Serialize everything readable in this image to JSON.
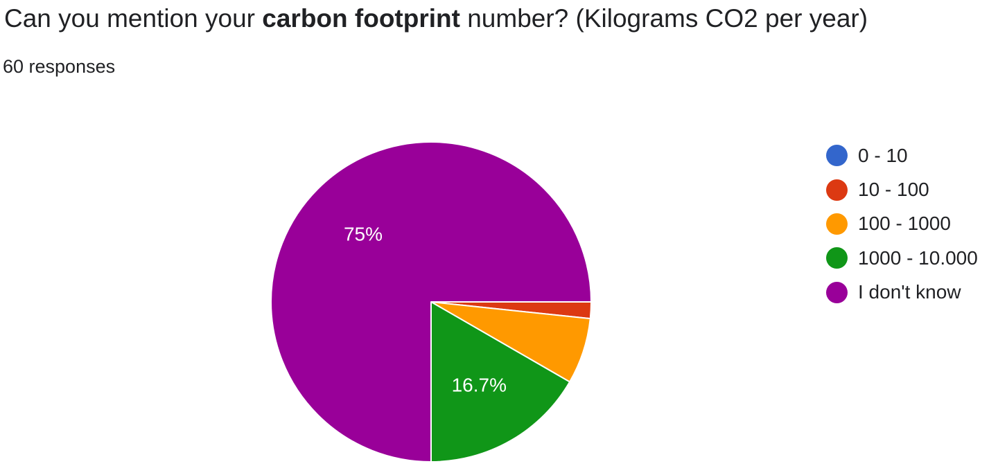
{
  "chart_data": {
    "type": "pie",
    "title_parts": {
      "pre": "Can you mention your ",
      "bold": "carbon footprint",
      "post": " number? (Kilograms CO2 per year)"
    },
    "subtitle": "60 responses",
    "categories": [
      "0 - 10",
      "10 - 100",
      "100 - 1000",
      "1000 - 10.000",
      "I don't know"
    ],
    "values": [
      0,
      1,
      4,
      10,
      45
    ],
    "percent_labels": [
      "",
      "",
      "",
      "16.7%",
      "75%"
    ],
    "colors": [
      "#3366cc",
      "#dc3912",
      "#ff9900",
      "#109618",
      "#990099"
    ],
    "legend_position": "right"
  }
}
